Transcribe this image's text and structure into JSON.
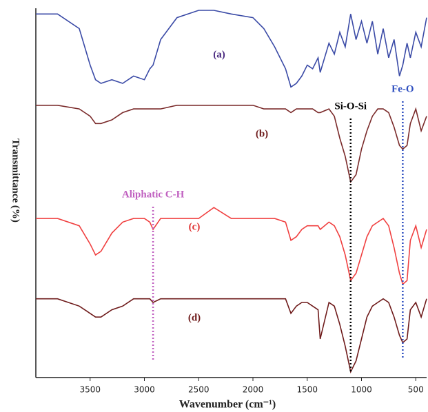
{
  "chart_data": {
    "type": "line",
    "x_label": "Wavenumber (cm⁻¹)",
    "y_label": "Transmittance (%)",
    "x": [
      4000,
      3800,
      3600,
      3500,
      3450,
      3400,
      3300,
      3200,
      3100,
      3000,
      2950,
      2920,
      2850,
      2700,
      2500,
      2360,
      2200,
      2000,
      1900,
      1800,
      1700,
      1650,
      1600,
      1550,
      1500,
      1450,
      1400,
      1380,
      1300,
      1250,
      1200,
      1150,
      1100,
      1050,
      1000,
      950,
      900,
      850,
      800,
      750,
      700,
      650,
      620,
      580,
      550,
      500,
      450,
      400
    ],
    "series": [
      {
        "name": "(a)",
        "color": "#3a4aa6",
        "label_color": "#4a2a80",
        "values": [
          99,
          99,
          95,
          85,
          81,
          80,
          81,
          80,
          82,
          81,
          84,
          85,
          92,
          98,
          100,
          100,
          99,
          98,
          95,
          90,
          84,
          79,
          80,
          82,
          85,
          84,
          87,
          83,
          91,
          88,
          94,
          90,
          99,
          92,
          97,
          91,
          97,
          88,
          95,
          87,
          92,
          82,
          85,
          91,
          87,
          94,
          90,
          98
        ]
      },
      {
        "name": "(b)",
        "color": "#7a2a2a",
        "label_color": "#6e1a1a",
        "values": [
          74,
          74,
          73,
          71,
          69,
          69,
          70,
          72,
          73,
          73,
          73,
          73,
          73,
          74,
          74,
          74,
          74,
          74,
          73,
          73,
          73,
          72,
          73,
          73,
          73,
          73,
          72,
          72,
          73,
          71,
          65,
          60,
          53,
          55,
          62,
          67,
          71,
          73,
          73,
          72,
          68,
          63,
          62,
          63,
          69,
          73,
          67,
          71
        ]
      },
      {
        "name": "(c)",
        "color": "#f04040",
        "label_color": "#e03030",
        "values": [
          43,
          43,
          41,
          36,
          33,
          34,
          39,
          42,
          43,
          43,
          42,
          40,
          43,
          43,
          43,
          46,
          43,
          43,
          43,
          43,
          42,
          37,
          38,
          40,
          41,
          41,
          41,
          40,
          42,
          41,
          38,
          33,
          26,
          28,
          33,
          38,
          41,
          42,
          43,
          41,
          35,
          28,
          25,
          26,
          37,
          41,
          35,
          40
        ]
      },
      {
        "name": "(d)",
        "color": "#6e1a1a",
        "label_color": "#6e1a1a",
        "values": [
          21,
          21,
          19,
          17,
          16,
          16,
          18,
          19,
          21,
          21,
          21,
          20,
          21,
          21,
          21,
          21,
          21,
          21,
          21,
          21,
          21,
          17,
          19,
          20,
          20,
          19,
          18,
          10,
          20,
          19,
          14,
          8,
          1,
          4,
          10,
          16,
          19,
          20,
          21,
          20,
          16,
          11,
          9,
          10,
          18,
          20,
          16,
          21
        ]
      }
    ],
    "annotations": [
      {
        "text": "Si-O-Si",
        "x": 1100,
        "color": "#000000"
      },
      {
        "text": "Fe-O",
        "x": 620,
        "color": "#3050c0"
      },
      {
        "text": "Aliphatic C-H",
        "x": 2920,
        "color": "#c060c0"
      }
    ],
    "xlim": [
      4000,
      400
    ],
    "xticks": [
      3500,
      3000,
      2500,
      2000,
      1500,
      1000,
      500
    ],
    "ylim": [
      0,
      100
    ]
  }
}
